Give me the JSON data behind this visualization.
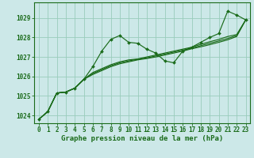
{
  "background_color": "#cce8e8",
  "grid_color": "#99ccbb",
  "line_color": "#1a6b1a",
  "text_color": "#1a6b1a",
  "xlabel": "Graphe pression niveau de la mer (hPa)",
  "xlabel_fontsize": 6.5,
  "tick_fontsize": 5.5,
  "ytick_labels": [
    1024,
    1025,
    1026,
    1027,
    1028,
    1029
  ],
  "ylim": [
    1023.6,
    1029.8
  ],
  "xlim": [
    -0.5,
    23.5
  ],
  "xtick_labels": [
    0,
    1,
    2,
    3,
    4,
    5,
    6,
    7,
    8,
    9,
    10,
    11,
    12,
    13,
    14,
    15,
    16,
    17,
    18,
    19,
    20,
    21,
    22,
    23
  ],
  "series": [
    [
      1023.8,
      1024.2,
      1025.15,
      1025.2,
      1025.4,
      1025.85,
      1026.5,
      1027.3,
      1027.9,
      1028.1,
      1027.75,
      1027.7,
      1027.4,
      1027.2,
      1026.8,
      1026.7,
      1027.3,
      1027.5,
      1027.75,
      1028.0,
      1028.2,
      1029.35,
      1029.15,
      1028.9
    ],
    [
      1023.8,
      1024.2,
      1025.15,
      1025.2,
      1025.4,
      1025.85,
      1026.2,
      1026.4,
      1026.6,
      1026.75,
      1026.85,
      1026.9,
      1027.0,
      1027.1,
      1027.2,
      1027.3,
      1027.4,
      1027.5,
      1027.65,
      1027.78,
      1027.9,
      1028.05,
      1028.15,
      1028.9
    ],
    [
      1023.8,
      1024.2,
      1025.15,
      1025.2,
      1025.4,
      1025.85,
      1026.15,
      1026.35,
      1026.55,
      1026.7,
      1026.8,
      1026.88,
      1026.95,
      1027.05,
      1027.15,
      1027.25,
      1027.35,
      1027.45,
      1027.58,
      1027.7,
      1027.82,
      1027.95,
      1028.1,
      1028.9
    ],
    [
      1023.8,
      1024.2,
      1025.15,
      1025.2,
      1025.4,
      1025.85,
      1026.1,
      1026.3,
      1026.5,
      1026.65,
      1026.75,
      1026.85,
      1026.92,
      1027.0,
      1027.1,
      1027.2,
      1027.3,
      1027.42,
      1027.52,
      1027.63,
      1027.75,
      1027.88,
      1028.05,
      1028.9
    ]
  ],
  "marker": "D",
  "marker_size": 2.0
}
